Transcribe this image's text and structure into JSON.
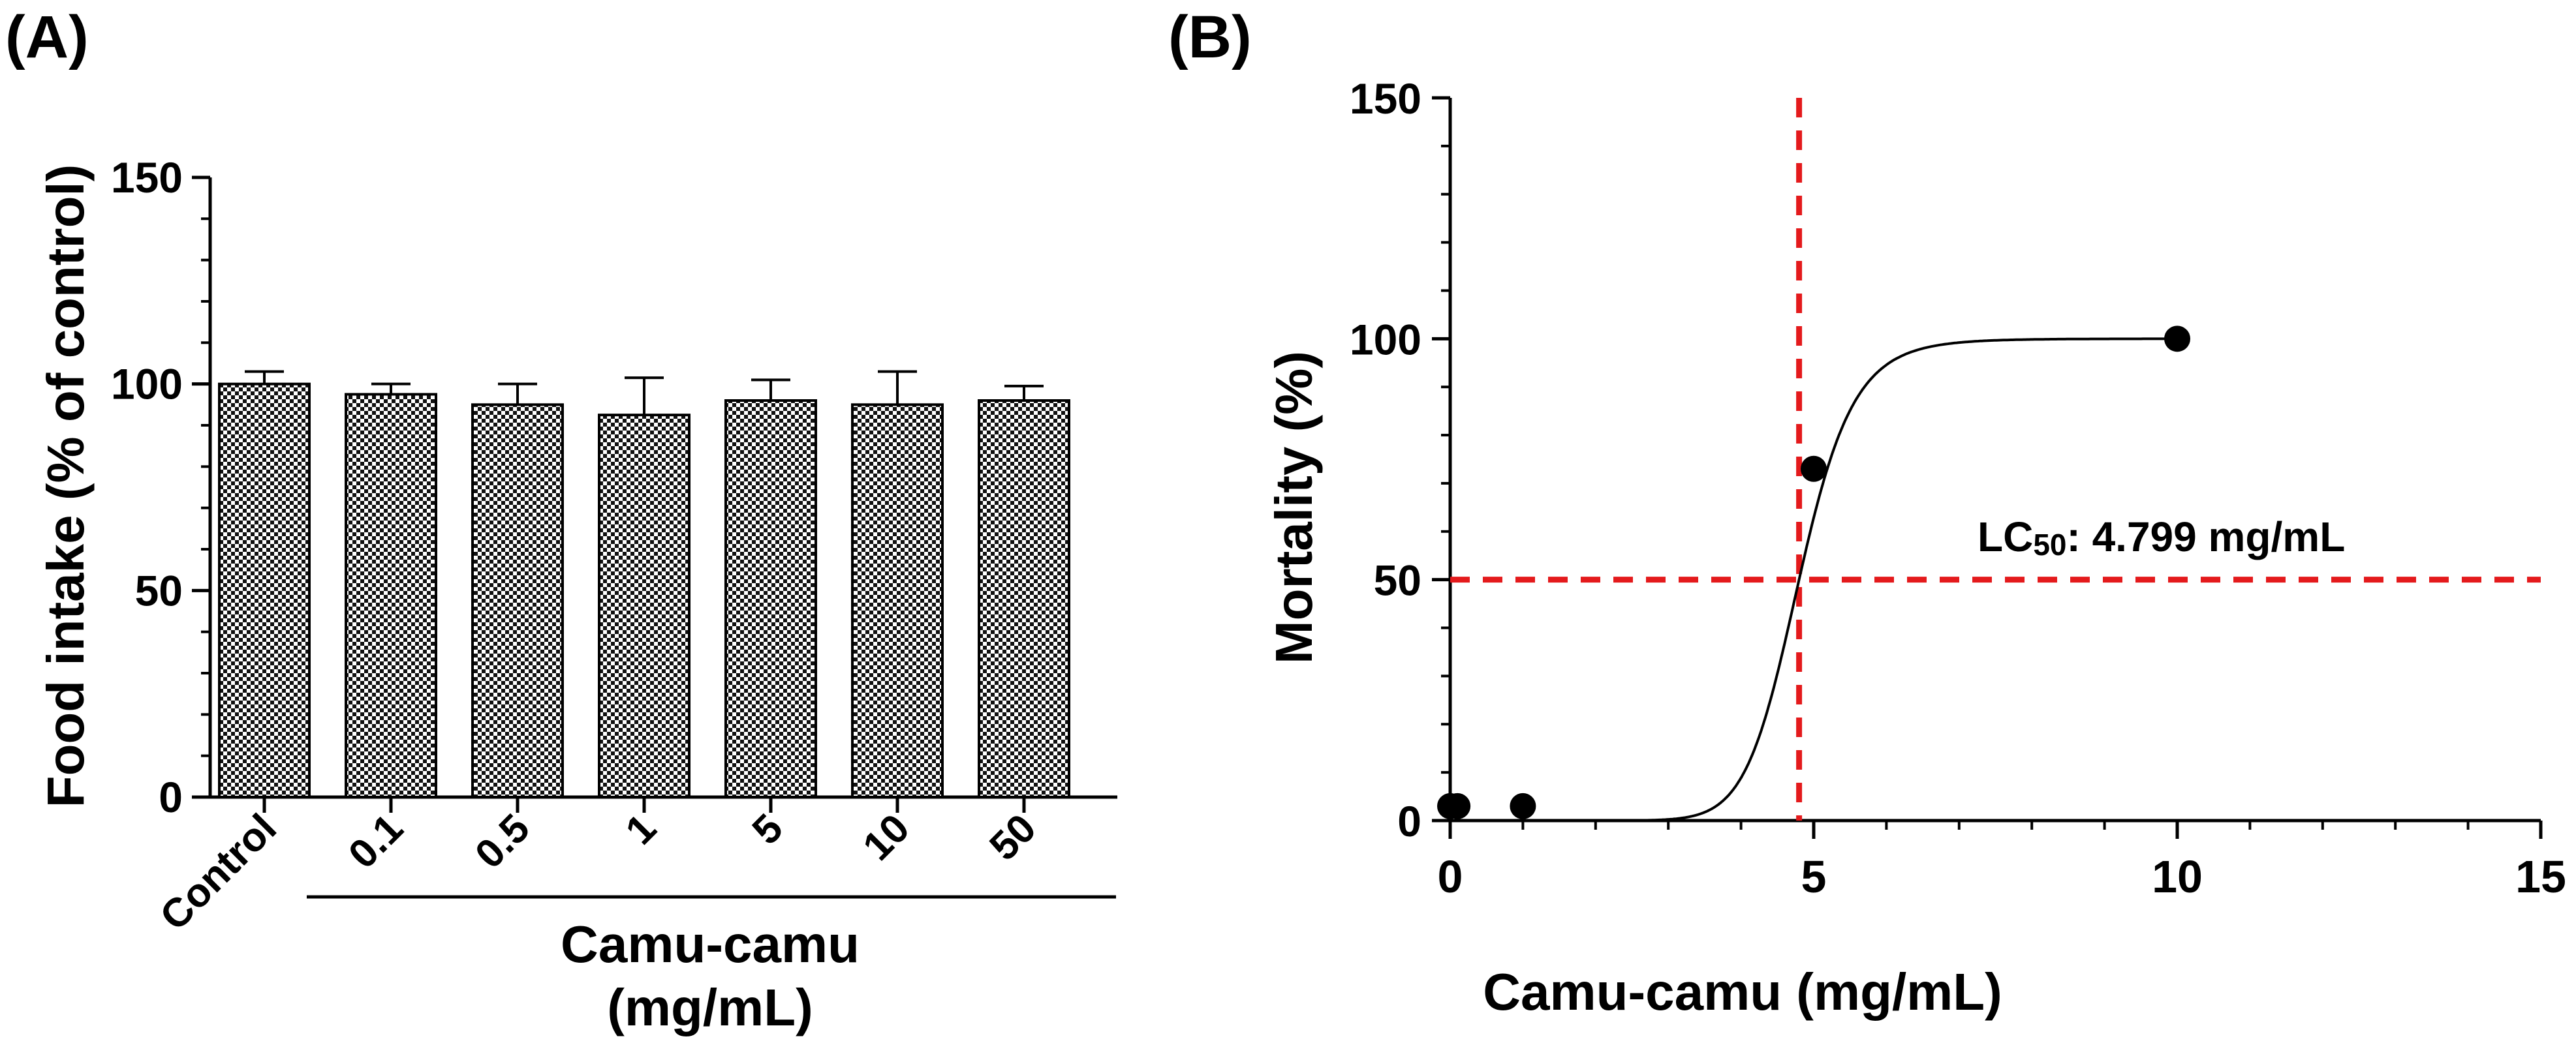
{
  "chart_data": [
    {
      "panel_label": "(A)",
      "type": "bar",
      "ylabel": "Food intake (% of control)",
      "ylim": [
        0,
        150
      ],
      "yticks": [
        "0",
        "50",
        "100",
        "150"
      ],
      "categories": [
        "Control",
        "0.1",
        "0.5",
        "1",
        "5",
        "10",
        "50"
      ],
      "values": [
        100,
        97.5,
        95,
        92.5,
        96,
        95,
        96
      ],
      "errors": [
        3,
        2.5,
        5,
        9,
        5,
        8,
        3.5
      ],
      "group_label_line1": "Camu-camu",
      "group_label_line2": "(mg/mL)",
      "bar_fill": "checkerboard",
      "legend": "none"
    },
    {
      "panel_label": "(B)",
      "type": "scatter",
      "xlabel": "Camu-camu (mg/mL)",
      "ylabel": "Mortality (%)",
      "xlim": [
        0,
        15
      ],
      "ylim": [
        0,
        150
      ],
      "xticks": [
        "0",
        "5",
        "10",
        "15"
      ],
      "yticks": [
        "0",
        "50",
        "100",
        "150"
      ],
      "points": {
        "x": [
          0,
          0.1,
          1,
          5,
          10
        ],
        "y": [
          3,
          3,
          3,
          73,
          100
        ]
      },
      "fit": {
        "model": "sigmoidal dose-response",
        "bottom": 0,
        "top": 100,
        "lc50": 4.799,
        "hill_slope": 4
      },
      "reference_lines": {
        "vertical_x": 4.799,
        "horizontal_y": 50,
        "color": "#e41a1c"
      },
      "annotation": {
        "prefix": "LC",
        "subscript": "50",
        "suffix": ": 4.799 mg/mL"
      },
      "legend": "none"
    }
  ]
}
